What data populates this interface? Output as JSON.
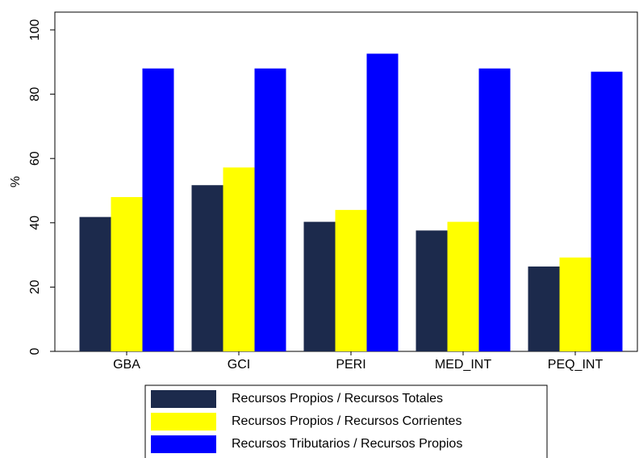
{
  "chart_data": {
    "type": "bar",
    "y_label": "%",
    "categories": [
      "GBA",
      "GCI",
      "PERI",
      "MED_INT",
      "PEQ_INT"
    ],
    "series": [
      {
        "name": "Recursos Propios / Recursos Totales",
        "color": "#1c2a4c",
        "values": [
          41.8,
          51.7,
          40.3,
          37.6,
          26.4
        ]
      },
      {
        "name": "Recursos Propios / Recursos Corrientes",
        "color": "#ffff00",
        "values": [
          48.0,
          57.2,
          44.0,
          40.3,
          29.2
        ]
      },
      {
        "name": "Recursos Tributarios / Recursos Propios",
        "color": "#0000ff",
        "values": [
          88.0,
          88.0,
          92.6,
          88.0,
          87.0
        ]
      }
    ],
    "ylim": [
      0,
      100
    ],
    "yticks": [
      0,
      20,
      40,
      60,
      80,
      100
    ],
    "grid": false
  }
}
